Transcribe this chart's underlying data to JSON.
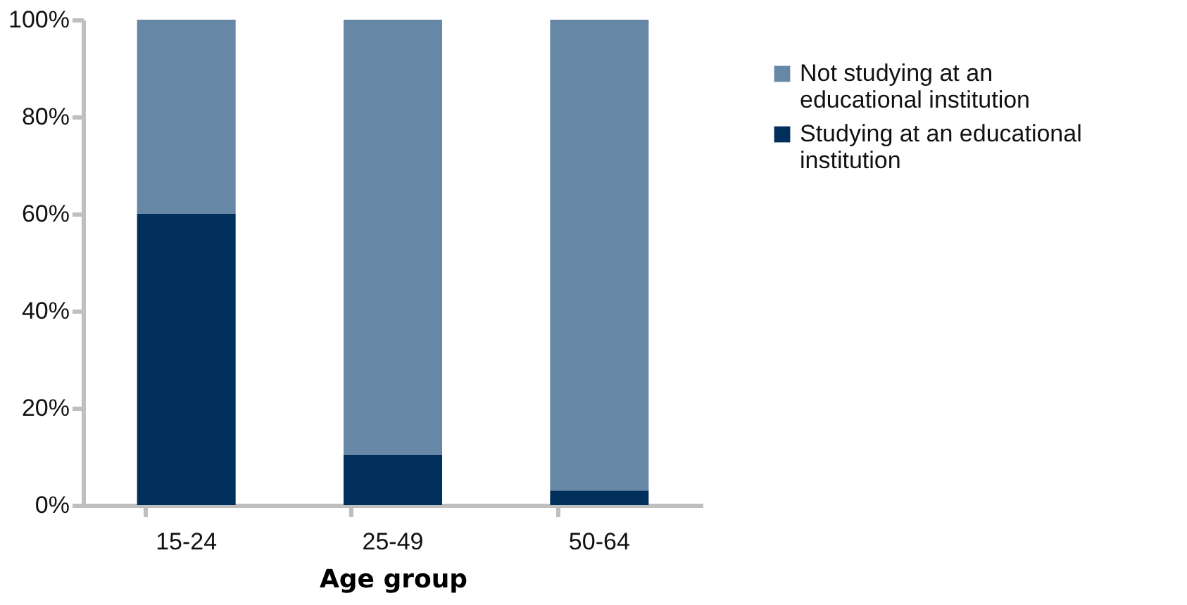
{
  "chart_data": {
    "type": "bar",
    "stacked": true,
    "xlabel": "Age group",
    "categories": [
      "15-24",
      "25-49",
      "50-64"
    ],
    "series": [
      {
        "name": "Studying at an educational institution",
        "color": "#002f5b",
        "values": [
          60,
          10.3,
          3
        ]
      },
      {
        "name": "Not studying at an educational institution",
        "color": "#6687a5",
        "values": [
          40,
          89.7,
          97
        ]
      }
    ],
    "ylim": [
      0,
      100
    ],
    "yticks": [
      {
        "value": 0,
        "label": "0%"
      },
      {
        "value": 20,
        "label": "20%"
      },
      {
        "value": 40,
        "label": "40%"
      },
      {
        "value": 60,
        "label": "60%"
      },
      {
        "value": 80,
        "label": "80%"
      },
      {
        "value": 100,
        "label": "100%"
      }
    ],
    "grid": false,
    "legend": "right"
  }
}
